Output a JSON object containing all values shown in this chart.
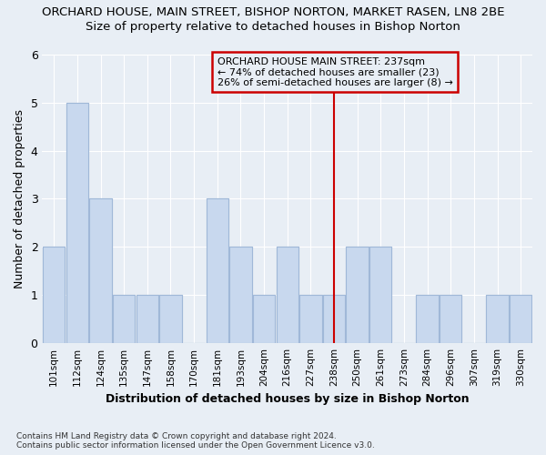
{
  "title": "ORCHARD HOUSE, MAIN STREET, BISHOP NORTON, MARKET RASEN, LN8 2BE",
  "subtitle": "Size of property relative to detached houses in Bishop Norton",
  "xlabel": "Distribution of detached houses by size in Bishop Norton",
  "ylabel": "Number of detached properties",
  "footer_line1": "Contains HM Land Registry data © Crown copyright and database right 2024.",
  "footer_line2": "Contains public sector information licensed under the Open Government Licence v3.0.",
  "categories": [
    "101sqm",
    "112sqm",
    "124sqm",
    "135sqm",
    "147sqm",
    "158sqm",
    "170sqm",
    "181sqm",
    "193sqm",
    "204sqm",
    "216sqm",
    "227sqm",
    "238sqm",
    "250sqm",
    "261sqm",
    "273sqm",
    "284sqm",
    "296sqm",
    "307sqm",
    "319sqm",
    "330sqm"
  ],
  "values": [
    2,
    5,
    3,
    1,
    1,
    1,
    0,
    3,
    2,
    1,
    2,
    1,
    1,
    2,
    2,
    0,
    1,
    1,
    0,
    1,
    1
  ],
  "bar_color": "#c8d8ee",
  "bar_edge_color": "#a0b8d8",
  "subject_bin_index": 12,
  "annotation_title": "ORCHARD HOUSE MAIN STREET: 237sqm",
  "annotation_line2": "← 74% of detached houses are smaller (23)",
  "annotation_line3": "26% of semi-detached houses are larger (8) →",
  "vline_color": "#cc0000",
  "annotation_box_edgecolor": "#cc0000",
  "ylim": [
    0,
    6
  ],
  "background_color": "#e8eef5",
  "grid_color": "#ffffff"
}
